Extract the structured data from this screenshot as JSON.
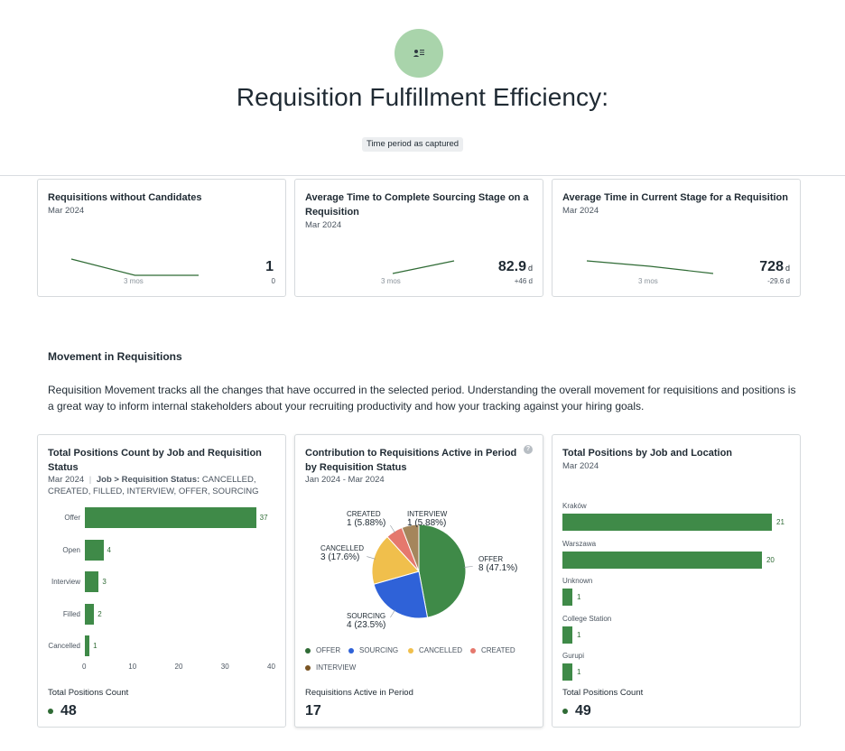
{
  "header": {
    "title": "Requisition Fulfillment Efficiency:",
    "period_badge": "Time period as captured",
    "avatar_icon": "person-list-icon"
  },
  "kpis": [
    {
      "title": "Requisitions without Candidates",
      "period": "Mar 2024",
      "value": "1",
      "unit": "",
      "delta": "0",
      "spark_label": "3 mos",
      "spark_values": [
        3,
        1,
        1
      ]
    },
    {
      "title": "Average Time to Complete Sourcing Stage on a Requisition",
      "period": "Mar 2024",
      "value": "82.9",
      "unit": "d",
      "delta": "+46 d",
      "spark_label": "3 mos",
      "spark_values": [
        36.9,
        82.9
      ]
    },
    {
      "title": "Average Time in Current Stage for a Requisition",
      "period": "Mar 2024",
      "value": "728",
      "unit": "d",
      "delta": "-29.6 d",
      "spark_label": "3 mos",
      "spark_values": [
        780,
        757.6,
        728
      ]
    }
  ],
  "section": {
    "title": "Movement in Requisitions",
    "description": "Requisition Movement tracks all the changes that have occurred in the selected period. Understanding the overall movement for requisitions and positions is a great way to inform internal stakeholders about your recruiting productivity and how your tracking against your hiring goals."
  },
  "card_positions": {
    "title": "Total Positions Count by Job and Requisition Status",
    "period": "Mar 2024",
    "filter_label": "Job > Requisition Status:",
    "filter_value": "CANCELLED, CREATED, FILLED, INTERVIEW, OFFER, SOURCING",
    "footer_label": "Total Positions Count",
    "footer_value": "48"
  },
  "card_contribution": {
    "title": "Contribution to Requisitions Active in Period by Requisition Status",
    "period": "Jan 2024 - Mar 2024",
    "footer_label": "Requisitions Active in Period",
    "footer_value": "17",
    "help_icon": "?"
  },
  "card_location": {
    "title": "Total Positions by Job and Location",
    "period": "Mar 2024",
    "footer_label": "Total Positions Count",
    "footer_value": "49"
  },
  "colors": {
    "accent_green": "#3f8a48",
    "offer": "#3f8a48",
    "sourcing": "#2f62d8",
    "cancelled": "#f0bf4c",
    "created": "#e5786d",
    "interview": "#a5865c"
  },
  "chart_data": [
    {
      "type": "bar",
      "orientation": "horizontal",
      "title": "Total Positions Count by Job and Requisition Status",
      "categories": [
        "Offer",
        "Open",
        "Interview",
        "Filled",
        "Cancelled"
      ],
      "values": [
        37,
        4,
        3,
        2,
        1
      ],
      "xlim": [
        0,
        40
      ],
      "xticks": [
        "0",
        "10",
        "20",
        "30",
        "40"
      ]
    },
    {
      "type": "pie",
      "title": "Contribution to Requisitions Active in Period by Requisition Status",
      "slices": [
        {
          "name": "OFFER",
          "value": 8,
          "label": "8 (47.1%)"
        },
        {
          "name": "SOURCING",
          "value": 4,
          "label": "4 (23.5%)"
        },
        {
          "name": "CANCELLED",
          "value": 3,
          "label": "3 (17.6%)"
        },
        {
          "name": "CREATED",
          "value": 1,
          "label": "1 (5.88%)"
        },
        {
          "name": "INTERVIEW",
          "value": 1,
          "label": "1 (5.88%)"
        }
      ],
      "legend": [
        "OFFER",
        "SOURCING",
        "CANCELLED",
        "CREATED",
        "INTERVIEW"
      ]
    },
    {
      "type": "bar",
      "orientation": "horizontal",
      "title": "Total Positions by Job and Location",
      "categories": [
        "Kraków",
        "Warszawa",
        "Unknown",
        "College Station",
        "Gurupi"
      ],
      "values": [
        21,
        20,
        1,
        1,
        1
      ],
      "xlim": [
        0,
        22
      ]
    }
  ]
}
